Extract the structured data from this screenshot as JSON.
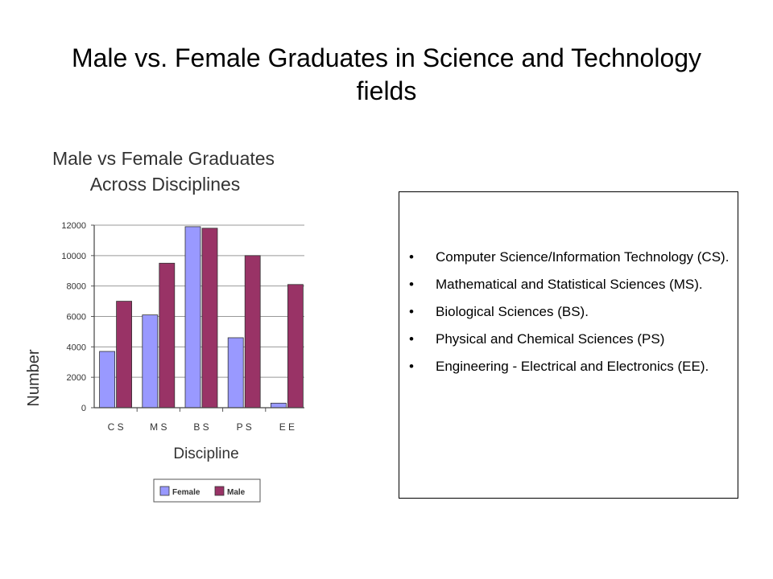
{
  "slide": {
    "title": "Male vs. Female Graduates in Science and Technology fields"
  },
  "definitions": [
    "Computer Science/Information Technology (CS).",
    "Mathematical and Statistical Sciences (MS).",
    "Biological Sciences (BS).",
    "Physical and Chemical Sciences (PS)",
    "Engineering - Electrical and Electronics (EE)."
  ],
  "chart_data": {
    "type": "bar",
    "title": "Male vs Female Graduates Across Disciplines",
    "title_lines": [
      "Male vs Female Graduates",
      "Across Disciplines"
    ],
    "xlabel": "Discipline",
    "ylabel": "Number",
    "categories": [
      "CS",
      "MS",
      "BS",
      "PS",
      "EE"
    ],
    "category_labels": [
      "C S",
      "M S",
      "B S",
      "P S",
      "E E"
    ],
    "series": [
      {
        "name": "Female",
        "values": [
          3700,
          6100,
          11900,
          4600,
          300
        ],
        "color": "#9999ff"
      },
      {
        "name": "Male",
        "values": [
          7000,
          9500,
          11800,
          10000,
          8100
        ],
        "color": "#993366"
      }
    ],
    "ylim": [
      0,
      12000
    ],
    "yticks": [
      0,
      2000,
      4000,
      6000,
      8000,
      10000,
      12000
    ],
    "grid": true,
    "legend_position": "bottom"
  }
}
